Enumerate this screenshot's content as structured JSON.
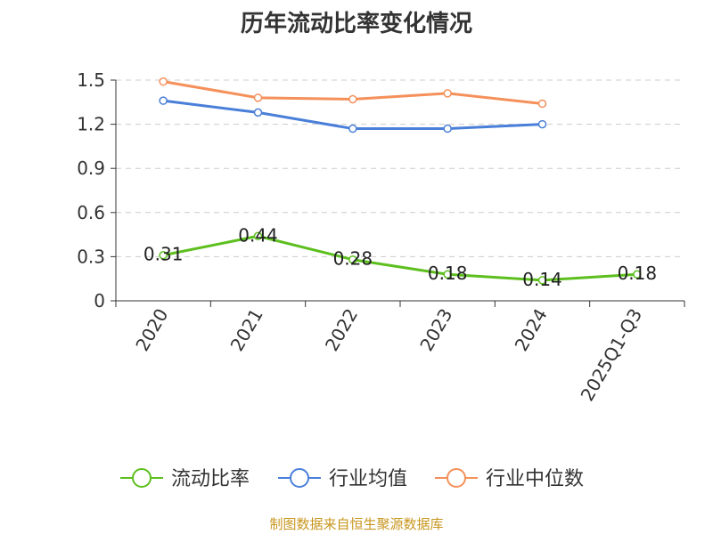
{
  "chart_data": {
    "type": "line",
    "title": "历年流动比率变化情况",
    "categories": [
      "2020",
      "2021",
      "2022",
      "2023",
      "2024",
      "2025Q1-Q3"
    ],
    "series": [
      {
        "name": "流动比率",
        "color": "#5cbf1e",
        "values": [
          0.31,
          0.44,
          0.28,
          0.18,
          0.14,
          0.18
        ],
        "show_labels": true
      },
      {
        "name": "行业均值",
        "color": "#4a7fd9",
        "values": [
          1.36,
          1.28,
          1.17,
          1.17,
          1.2,
          null
        ],
        "show_labels": false
      },
      {
        "name": "行业中位数",
        "color": "#f5905a",
        "values": [
          1.49,
          1.38,
          1.37,
          1.41,
          1.34,
          null
        ],
        "show_labels": false
      }
    ],
    "ylim": [
      0,
      1.5
    ],
    "yticks": [
      "0",
      "0.3",
      "0.6",
      "0.9",
      "1.2",
      "1.5"
    ],
    "grid": true,
    "legend": "bottom"
  },
  "source": "制图数据来自恒生聚源数据库"
}
